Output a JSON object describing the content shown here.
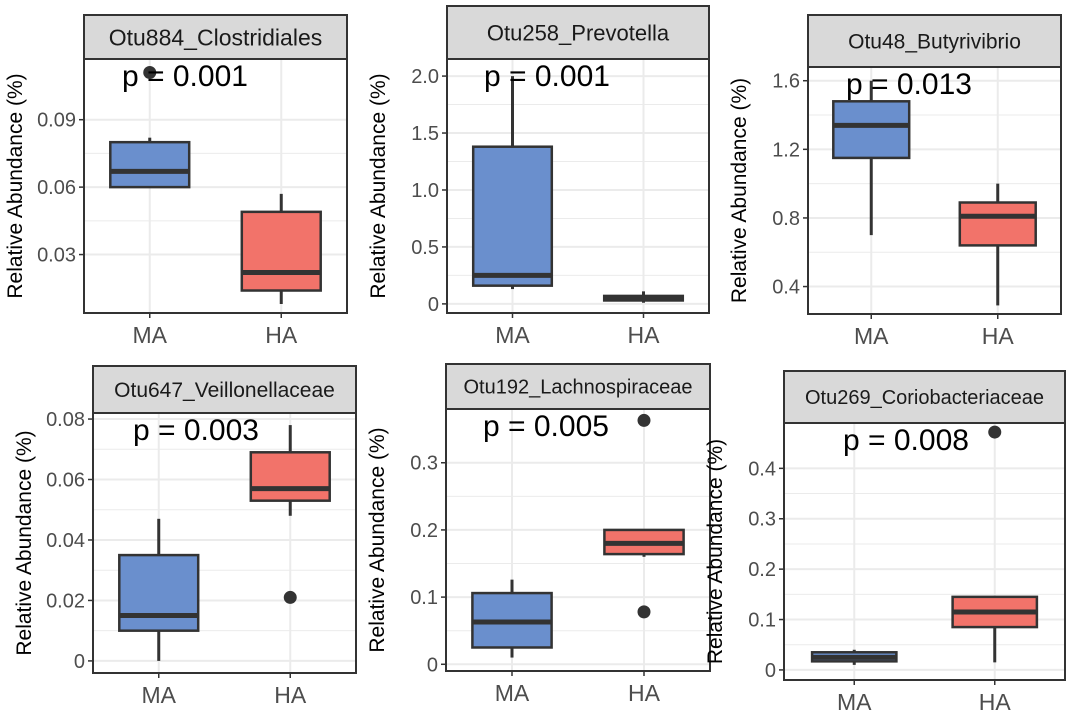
{
  "figure": {
    "colors": {
      "MA": "#6a8fcd",
      "HA": "#f2736a",
      "strip": "#d9d9d9",
      "grid": "#ebebeb",
      "ink": "#333333"
    }
  },
  "chart_data": [
    {
      "type": "box",
      "title": "Otu884_Clostridiales",
      "pvalue": "p = 0.001",
      "ylabel": "Relative Abundance (%)",
      "categories": [
        "MA",
        "HA"
      ],
      "yticks": [
        "0.03",
        "0.06",
        "0.09"
      ],
      "ytick_values": [
        0.03,
        0.06,
        0.09
      ],
      "ylim": [
        0.004,
        0.117
      ],
      "boxes": [
        {
          "group": "MA",
          "min": 0.06,
          "q1": 0.06,
          "median": 0.067,
          "q3": 0.08,
          "max": 0.082,
          "outliers": [
            0.111
          ]
        },
        {
          "group": "HA",
          "min": 0.008,
          "q1": 0.014,
          "median": 0.022,
          "q3": 0.049,
          "max": 0.057,
          "outliers": []
        }
      ]
    },
    {
      "type": "box",
      "title": "Otu258_Prevotella",
      "pvalue": "p = 0.001",
      "ylabel": "Relative Abundance (%)",
      "categories": [
        "MA",
        "HA"
      ],
      "yticks": [
        "0",
        "0.5",
        "1.0",
        "1.5",
        "2.0"
      ],
      "ytick_values": [
        0,
        0.5,
        1.0,
        1.5,
        2.0
      ],
      "ylim": [
        -0.08,
        2.15
      ],
      "boxes": [
        {
          "group": "MA",
          "min": 0.13,
          "q1": 0.16,
          "median": 0.25,
          "q3": 1.38,
          "max": 2.0,
          "outliers": []
        },
        {
          "group": "HA",
          "min": 0.01,
          "q1": 0.03,
          "median": 0.05,
          "q3": 0.07,
          "max": 0.11,
          "outliers": []
        }
      ]
    },
    {
      "type": "box",
      "title": "Otu48_Butyrivibrio",
      "pvalue": "p = 0.013",
      "ylabel": "Relative Abundance (%)",
      "categories": [
        "MA",
        "HA"
      ],
      "yticks": [
        "0.4",
        "0.8",
        "1.2",
        "1.6"
      ],
      "ytick_values": [
        0.4,
        0.8,
        1.2,
        1.6
      ],
      "ylim": [
        0.24,
        1.68
      ],
      "boxes": [
        {
          "group": "MA",
          "min": 0.7,
          "q1": 1.15,
          "median": 1.34,
          "q3": 1.48,
          "max": 1.6,
          "outliers": []
        },
        {
          "group": "HA",
          "min": 0.29,
          "q1": 0.64,
          "median": 0.81,
          "q3": 0.89,
          "max": 1.0,
          "outliers": []
        }
      ]
    },
    {
      "type": "box",
      "title": "Otu647_Veillonellaceae",
      "pvalue": "p = 0.003",
      "ylabel": "Relative Abundance (%)",
      "categories": [
        "MA",
        "HA"
      ],
      "yticks": [
        "0",
        "0.02",
        "0.04",
        "0.06",
        "0.08"
      ],
      "ytick_values": [
        0,
        0.02,
        0.04,
        0.06,
        0.08
      ],
      "ylim": [
        -0.004,
        0.082
      ],
      "boxes": [
        {
          "group": "MA",
          "min": 0.0,
          "q1": 0.01,
          "median": 0.015,
          "q3": 0.035,
          "max": 0.047,
          "outliers": []
        },
        {
          "group": "HA",
          "min": 0.048,
          "q1": 0.053,
          "median": 0.057,
          "q3": 0.069,
          "max": 0.078,
          "outliers": [
            0.021
          ]
        }
      ]
    },
    {
      "type": "box",
      "title": "Otu192_Lachnospiraceae",
      "pvalue": "p = 0.005",
      "ylabel": "Relative Abundance (%)",
      "categories": [
        "MA",
        "HA"
      ],
      "yticks": [
        "0",
        "0.1",
        "0.2",
        "0.3"
      ],
      "ytick_values": [
        0,
        0.1,
        0.2,
        0.3
      ],
      "ylim": [
        -0.01,
        0.38
      ],
      "boxes": [
        {
          "group": "MA",
          "min": 0.01,
          "q1": 0.025,
          "median": 0.063,
          "q3": 0.106,
          "max": 0.126,
          "outliers": []
        },
        {
          "group": "HA",
          "min": 0.16,
          "q1": 0.164,
          "median": 0.18,
          "q3": 0.2,
          "max": 0.2,
          "outliers": [
            0.078,
            0.363
          ]
        }
      ]
    },
    {
      "type": "box",
      "title": "Otu269_Coriobacteriaceae",
      "pvalue": "p = 0.008",
      "ylabel": "Relative Abundance (%)",
      "categories": [
        "MA",
        "HA"
      ],
      "yticks": [
        "0",
        "0.1",
        "0.2",
        "0.3",
        "0.4"
      ],
      "ytick_values": [
        0,
        0.1,
        0.2,
        0.3,
        0.4
      ],
      "ylim": [
        -0.02,
        0.49
      ],
      "boxes": [
        {
          "group": "MA",
          "min": 0.01,
          "q1": 0.017,
          "median": 0.025,
          "q3": 0.035,
          "max": 0.04,
          "outliers": []
        },
        {
          "group": "HA",
          "min": 0.015,
          "q1": 0.085,
          "median": 0.115,
          "q3": 0.145,
          "max": 0.145,
          "outliers": [
            0.472
          ]
        }
      ]
    }
  ]
}
